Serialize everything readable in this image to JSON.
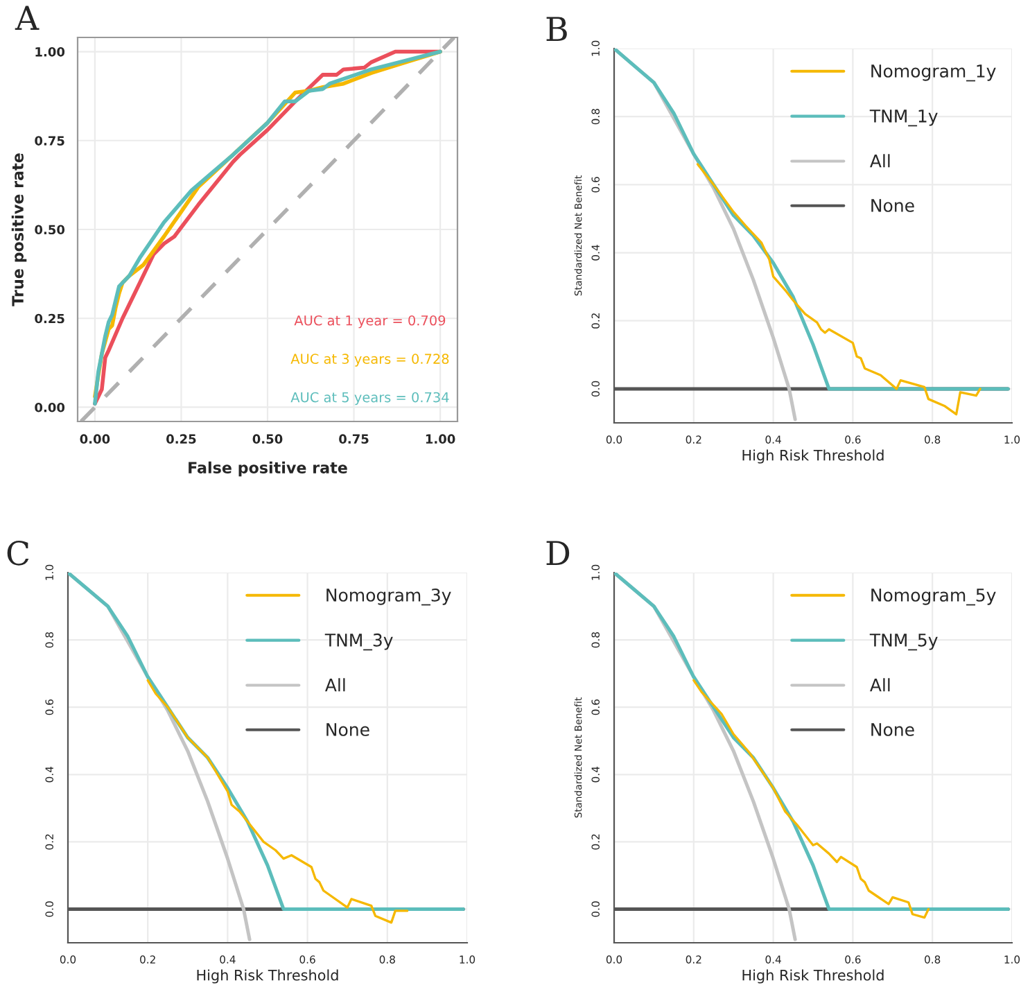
{
  "chart_data": [
    {
      "type": "line",
      "title": "A",
      "xlabel": "False positive rate",
      "ylabel": "True positive rate",
      "xlim": [
        -0.05,
        1.05
      ],
      "ylim": [
        -0.04,
        1.04
      ],
      "xticks": [
        {
          "value": 0,
          "label": "0.00"
        },
        {
          "value": 0.25,
          "label": "0.25"
        },
        {
          "value": 0.5,
          "label": "0.50"
        },
        {
          "value": 0.75,
          "label": "0.75"
        },
        {
          "value": 1,
          "label": "1.00"
        }
      ],
      "yticks": [
        {
          "value": 0,
          "label": "0.00"
        },
        {
          "value": 0.25,
          "label": "0.25"
        },
        {
          "value": 0.5,
          "label": "0.50"
        },
        {
          "value": 0.75,
          "label": "0.75"
        },
        {
          "value": 1,
          "label": "1.00"
        }
      ],
      "grid": true,
      "series": [
        {
          "color": "#b0b0b0",
          "line_style": "dashed",
          "x": [
            -0.04,
            1.04
          ],
          "values": [
            -0.04,
            1.04
          ]
        },
        {
          "color": "#eb4f5b",
          "x": [
            0,
            0.02,
            0.03,
            0.04,
            0.08,
            0.12,
            0.17,
            0.2,
            0.23,
            0.3,
            0.4,
            0.42,
            0.5,
            0.58,
            0.66,
            0.7,
            0.72,
            0.78,
            0.8,
            0.87,
            1
          ],
          "values": [
            0.01,
            0.05,
            0.14,
            0.16,
            0.25,
            0.33,
            0.43,
            0.46,
            0.48,
            0.57,
            0.69,
            0.71,
            0.78,
            0.86,
            0.935,
            0.935,
            0.95,
            0.955,
            0.97,
            1,
            1
          ]
        },
        {
          "color": "#f5b800",
          "x": [
            0,
            0.02,
            0.04,
            0.05,
            0.06,
            0.07,
            0.08,
            0.1,
            0.14,
            0.2,
            0.25,
            0.3,
            0.4,
            0.5,
            0.58,
            0.62,
            0.66,
            0.72,
            0.8,
            0.9,
            1
          ],
          "values": [
            0.03,
            0.15,
            0.22,
            0.23,
            0.28,
            0.32,
            0.35,
            0.37,
            0.4,
            0.48,
            0.55,
            0.62,
            0.71,
            0.8,
            0.885,
            0.89,
            0.9,
            0.91,
            0.94,
            0.97,
            1
          ]
        },
        {
          "color": "#5cbdbb",
          "x": [
            0,
            0.01,
            0.03,
            0.04,
            0.05,
            0.07,
            0.1,
            0.13,
            0.2,
            0.28,
            0.4,
            0.5,
            0.55,
            0.58,
            0.62,
            0.66,
            0.68,
            0.8,
            0.9,
            1
          ],
          "values": [
            0.01,
            0.1,
            0.2,
            0.24,
            0.26,
            0.34,
            0.37,
            0.42,
            0.52,
            0.61,
            0.71,
            0.8,
            0.86,
            0.86,
            0.89,
            0.895,
            0.91,
            0.95,
            0.975,
            1
          ]
        }
      ],
      "annotations": [
        "AUC at 1 year = 0.709",
        "AUC at 3 years = 0.728",
        "AUC at 5 years = 0.734"
      ]
    },
    {
      "type": "line",
      "title": "B",
      "xlabel": "High Risk Threshold",
      "ylabel": "Standardized Net Benefit",
      "xlim": [
        0,
        1
      ],
      "ylim": [
        -0.1,
        1.0
      ],
      "xticks": [
        {
          "value": 0,
          "label": "0.0"
        },
        {
          "value": 0.2,
          "label": "0.2"
        },
        {
          "value": 0.4,
          "label": "0.4"
        },
        {
          "value": 0.6,
          "label": "0.6"
        },
        {
          "value": 0.8,
          "label": "0.8"
        },
        {
          "value": 1,
          "label": "1.0"
        }
      ],
      "yticks": [
        {
          "value": 0,
          "label": "0.0"
        },
        {
          "value": 0.2,
          "label": "0.2"
        },
        {
          "value": 0.4,
          "label": "0.4"
        },
        {
          "value": 0.6,
          "label": "0.6"
        },
        {
          "value": 0.8,
          "label": "0.8"
        },
        {
          "value": 1,
          "label": "1.0"
        }
      ],
      "grid": true,
      "legend": "top right",
      "series": [
        {
          "name": "Nomogram_1y",
          "color": "#f5b800",
          "x": [
            0.21,
            0.25,
            0.3,
            0.33,
            0.37,
            0.39,
            0.4,
            0.43,
            0.45,
            0.48,
            0.51,
            0.52,
            0.53,
            0.54,
            0.6,
            0.61,
            0.62,
            0.63,
            0.67,
            0.71,
            0.72,
            0.78,
            0.79,
            0.83,
            0.86,
            0.87,
            0.91,
            0.92
          ],
          "values": [
            0.66,
            0.6,
            0.52,
            0.48,
            0.43,
            0.38,
            0.33,
            0.29,
            0.26,
            0.22,
            0.195,
            0.175,
            0.165,
            0.175,
            0.135,
            0.095,
            0.09,
            0.06,
            0.04,
            0.0,
            0.025,
            0.005,
            -0.03,
            -0.05,
            -0.075,
            -0.01,
            -0.02,
            0.0
          ]
        },
        {
          "name": "TNM_1y",
          "color": "#5cbdbb",
          "x": [
            0,
            0.05,
            0.1,
            0.15,
            0.2,
            0.25,
            0.3,
            0.35,
            0.4,
            0.45,
            0.5,
            0.54,
            0.99
          ],
          "values": [
            1,
            0.95,
            0.9,
            0.81,
            0.69,
            0.6,
            0.51,
            0.45,
            0.37,
            0.27,
            0.13,
            0,
            0
          ]
        },
        {
          "name": "All",
          "color": "#c4c4c4",
          "x": [
            0,
            0.1,
            0.2,
            0.22,
            0.25,
            0.3,
            0.35,
            0.4,
            0.44,
            0.455
          ],
          "values": [
            1,
            0.9,
            0.69,
            0.65,
            0.59,
            0.47,
            0.32,
            0.15,
            0,
            -0.09
          ]
        },
        {
          "name": "None",
          "color": "#555555",
          "x": [
            0,
            0.99
          ],
          "values": [
            0,
            0
          ]
        }
      ]
    },
    {
      "type": "line",
      "title": "C",
      "xlabel": "High Risk Threshold",
      "xlim": [
        0,
        1
      ],
      "ylim": [
        -0.1,
        1.0
      ],
      "xticks": [
        {
          "value": 0,
          "label": "0.0"
        },
        {
          "value": 0.2,
          "label": "0.2"
        },
        {
          "value": 0.4,
          "label": "0.4"
        },
        {
          "value": 0.6,
          "label": "0.6"
        },
        {
          "value": 0.8,
          "label": "0.8"
        },
        {
          "value": 1,
          "label": "1.0"
        }
      ],
      "yticks": [
        {
          "value": 0,
          "label": "0.0"
        },
        {
          "value": 0.2,
          "label": "0.2"
        },
        {
          "value": 0.4,
          "label": "0.4"
        },
        {
          "value": 0.6,
          "label": "0.6"
        },
        {
          "value": 0.8,
          "label": "0.8"
        },
        {
          "value": 1,
          "label": "1.0"
        }
      ],
      "grid": true,
      "legend": "top right",
      "series": [
        {
          "name": "Nomogram_3y",
          "color": "#f5b800",
          "x": [
            0.2,
            0.22,
            0.25,
            0.3,
            0.35,
            0.39,
            0.4,
            0.41,
            0.43,
            0.45,
            0.49,
            0.52,
            0.54,
            0.56,
            0.61,
            0.62,
            0.63,
            0.64,
            0.7,
            0.71,
            0.76,
            0.77,
            0.81,
            0.82,
            0.85
          ],
          "values": [
            0.68,
            0.64,
            0.6,
            0.51,
            0.45,
            0.37,
            0.35,
            0.31,
            0.29,
            0.26,
            0.2,
            0.175,
            0.15,
            0.16,
            0.125,
            0.09,
            0.08,
            0.055,
            0.005,
            0.03,
            0.01,
            -0.02,
            -0.04,
            -0.005,
            -0.005
          ]
        },
        {
          "name": "TNM_3y",
          "color": "#5cbdbb",
          "x": [
            0,
            0.05,
            0.1,
            0.15,
            0.2,
            0.25,
            0.3,
            0.35,
            0.4,
            0.45,
            0.5,
            0.54,
            0.99
          ],
          "values": [
            1,
            0.95,
            0.9,
            0.81,
            0.69,
            0.6,
            0.51,
            0.45,
            0.36,
            0.26,
            0.13,
            0,
            0
          ]
        },
        {
          "name": "All",
          "color": "#c4c4c4",
          "x": [
            0,
            0.1,
            0.2,
            0.22,
            0.25,
            0.3,
            0.35,
            0.4,
            0.44,
            0.455
          ],
          "values": [
            1,
            0.9,
            0.69,
            0.65,
            0.59,
            0.47,
            0.32,
            0.15,
            0,
            -0.09
          ]
        },
        {
          "name": "None",
          "color": "#555555",
          "x": [
            0,
            0.99
          ],
          "values": [
            0,
            0
          ]
        }
      ]
    },
    {
      "type": "line",
      "title": "D",
      "xlabel": "High Risk Threshold",
      "ylabel": "Standardized Net Benefit",
      "xlim": [
        0,
        1
      ],
      "ylim": [
        -0.1,
        1.0
      ],
      "xticks": [
        {
          "value": 0,
          "label": "0.0"
        },
        {
          "value": 0.2,
          "label": "0.2"
        },
        {
          "value": 0.4,
          "label": "0.4"
        },
        {
          "value": 0.6,
          "label": "0.6"
        },
        {
          "value": 0.8,
          "label": "0.8"
        },
        {
          "value": 1,
          "label": "1.0"
        }
      ],
      "yticks": [
        {
          "value": 0,
          "label": "0.0"
        },
        {
          "value": 0.2,
          "label": "0.2"
        },
        {
          "value": 0.4,
          "label": "0.4"
        },
        {
          "value": 0.6,
          "label": "0.6"
        },
        {
          "value": 0.8,
          "label": "0.8"
        },
        {
          "value": 1,
          "label": "1.0"
        }
      ],
      "grid": true,
      "legend": "top right",
      "series": [
        {
          "name": "Nomogram_5y",
          "color": "#f5b800",
          "x": [
            0.2,
            0.22,
            0.27,
            0.3,
            0.34,
            0.4,
            0.43,
            0.46,
            0.5,
            0.51,
            0.54,
            0.56,
            0.57,
            0.61,
            0.62,
            0.63,
            0.64,
            0.69,
            0.7,
            0.74,
            0.75,
            0.78,
            0.79
          ],
          "values": [
            0.68,
            0.645,
            0.58,
            0.52,
            0.465,
            0.36,
            0.29,
            0.25,
            0.19,
            0.195,
            0.165,
            0.14,
            0.155,
            0.125,
            0.09,
            0.08,
            0.055,
            0.015,
            0.035,
            0.02,
            -0.015,
            -0.025,
            0.0
          ]
        },
        {
          "name": "TNM_5y",
          "color": "#5cbdbb",
          "x": [
            0,
            0.05,
            0.1,
            0.15,
            0.2,
            0.25,
            0.3,
            0.35,
            0.4,
            0.45,
            0.5,
            0.54,
            0.99
          ],
          "values": [
            1,
            0.95,
            0.9,
            0.81,
            0.69,
            0.6,
            0.51,
            0.45,
            0.36,
            0.26,
            0.13,
            0,
            0
          ]
        },
        {
          "name": "All",
          "color": "#c4c4c4",
          "x": [
            0,
            0.1,
            0.2,
            0.22,
            0.25,
            0.3,
            0.35,
            0.4,
            0.44,
            0.455
          ],
          "values": [
            1,
            0.9,
            0.69,
            0.65,
            0.59,
            0.47,
            0.32,
            0.15,
            0,
            -0.09
          ]
        },
        {
          "name": "None",
          "color": "#555555",
          "x": [
            0,
            0.99
          ],
          "values": [
            0,
            0
          ]
        }
      ]
    }
  ]
}
